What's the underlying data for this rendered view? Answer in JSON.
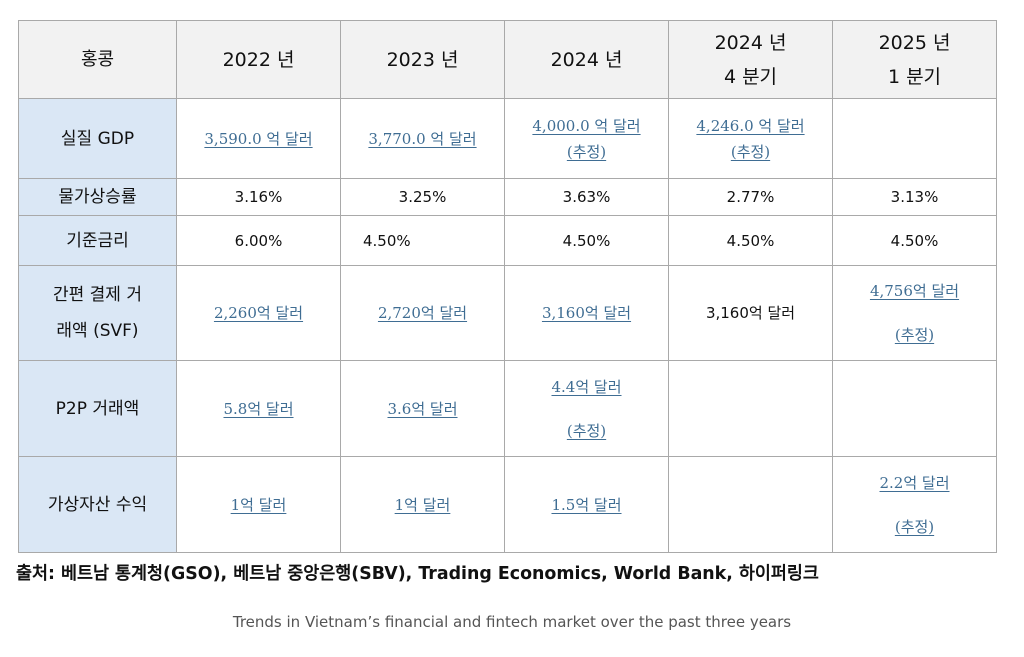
{
  "table": {
    "header": {
      "corner": "홍콩",
      "col1": "2022 년",
      "col2": "2023 년",
      "col3": "2024 년",
      "col4_line1": "2024 년",
      "col4_line2": "4 분기",
      "col5_line1": "2025 년",
      "col5_line2": "1 분기"
    },
    "rows": {
      "gdp": {
        "label": "실질 GDP",
        "c1": "3,590.0 억 달러",
        "c2": "3,770.0 억 달러",
        "c3": "4,000.0 억 달러",
        "c3_note": "(추정)",
        "c4": "4,246.0 억 달러",
        "c4_note": "(추정)",
        "c5": ""
      },
      "inflation": {
        "label": "물가상승률",
        "c1": "3.16%",
        "c2": "3.25%",
        "c3": "3.63%",
        "c4": "2.77%",
        "c5": "3.13%"
      },
      "rate": {
        "label": "기준금리",
        "c1": "6.00%",
        "c2": "4.50%",
        "c3": "4.50%",
        "c4": "4.50%",
        "c5": "4.50%"
      },
      "svf": {
        "label_line1": "간편 결제 거",
        "label_line2": "래액 (SVF)",
        "c1": "2,260억 달러",
        "c2": "2,720억 달러",
        "c3": "3,160억 달러",
        "c4": "3,160억 달러",
        "c5": "4,756억 달러",
        "c5_note": "(추정)"
      },
      "p2p": {
        "label": "P2P 거래액",
        "c1": "5.8억 달러",
        "c2": "3.6억 달러",
        "c3": "4.4억 달러",
        "c3_note": "(추정)",
        "c4": "",
        "c5": ""
      },
      "crypto": {
        "label": "가상자산 수익",
        "c1": "1억 달러",
        "c2": "1억 달러",
        "c3": "1.5억 달러",
        "c4": "",
        "c5": "2.2억 달러",
        "c5_note": "(추정)"
      }
    }
  },
  "source": "출처: 베트남 통계청(GSO), 베트남 중앙은행(SBV), Trading Economics, World Bank, 하이퍼링크",
  "caption": "Trends in Vietnam’s financial and fintech market over the past three years",
  "colors": {
    "header_bg": "#f2f2f2",
    "rowhead_bg": "#dae7f5",
    "link": "#3f6d93",
    "border": "#a9a9a9"
  }
}
